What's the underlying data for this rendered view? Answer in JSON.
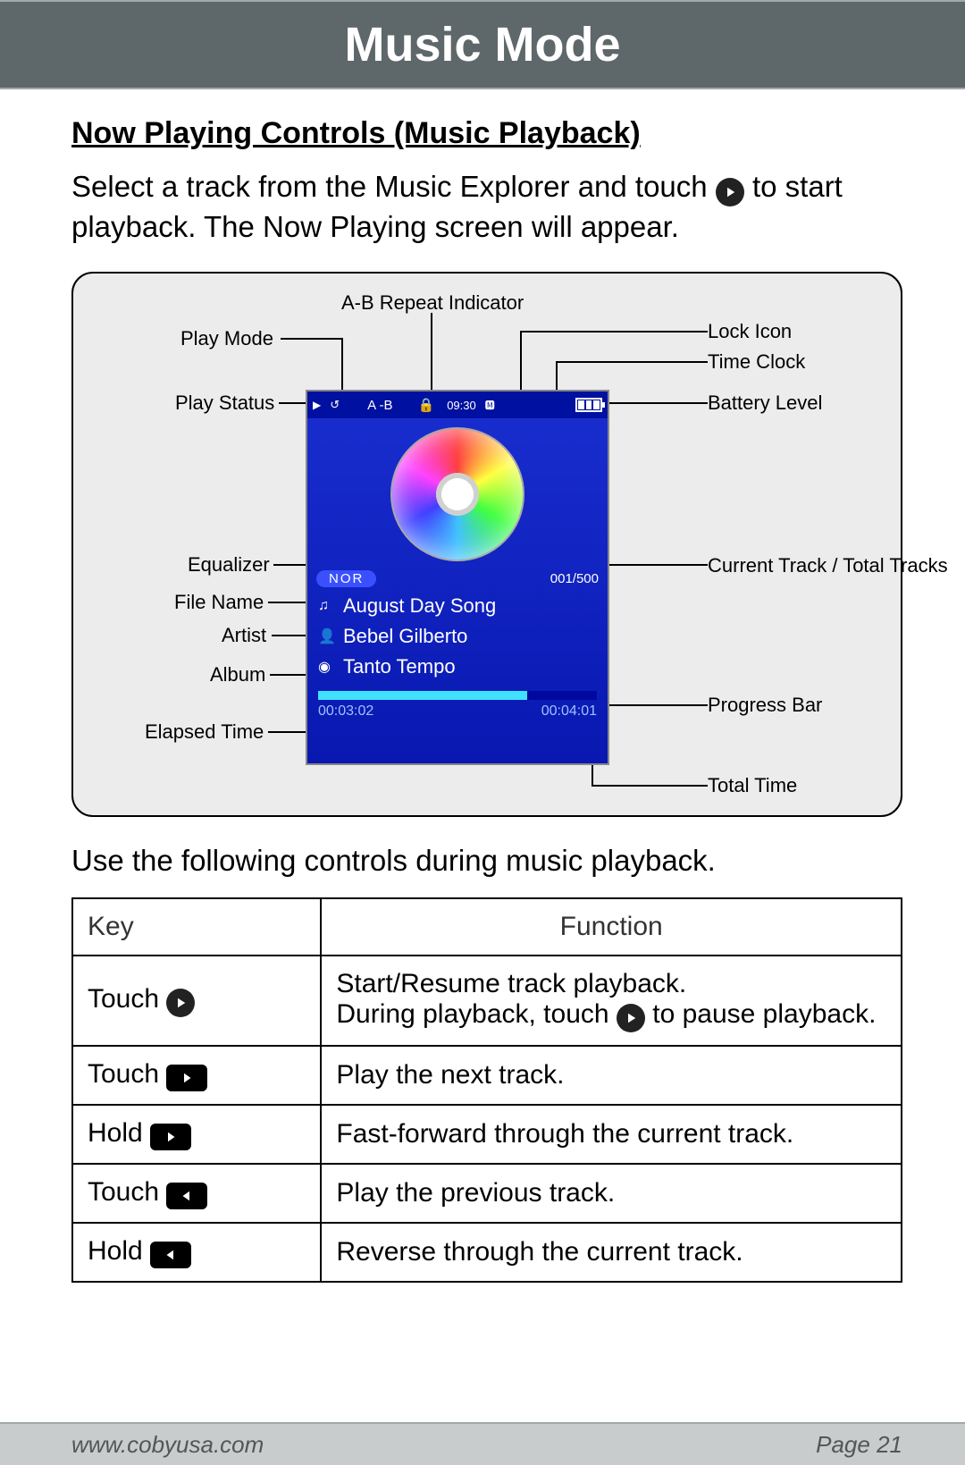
{
  "header": {
    "title": "Music Mode"
  },
  "section": {
    "title": "Now Playing Controls (Music Playback)",
    "intro_a": "Select a track from the Music Explorer and touch ",
    "intro_b": " to start playback. The Now Playing screen will appear.",
    "after": "Use the following controls during music playback."
  },
  "diagram": {
    "labels": {
      "ab_repeat": "A-B Repeat Indicator",
      "play_mode": "Play Mode",
      "play_status": "Play Status",
      "lock": "Lock Icon",
      "clock": "Time Clock",
      "battery": "Battery Level",
      "equalizer": "Equalizer",
      "file_name": "File Name",
      "artist": "Artist",
      "album": "Album",
      "elapsed": "Elapsed Time",
      "track_count": "Current Track / Total Tracks",
      "progress": "Progress Bar",
      "total_time": "Total Time"
    },
    "screen": {
      "ab": "A -B",
      "clock": "09:30",
      "eq": "NOR",
      "track_count": "001/500",
      "song": "August Day Song",
      "artist": "Bebel Gilberto",
      "album": "Tanto Tempo",
      "elapsed": "00:03:02",
      "total": "00:04:01",
      "progress_pct": 75,
      "colors": {
        "bg_top": "#1a2ed0",
        "bg_bot": "#0818b0",
        "status_bg": "#0010a0",
        "eq_pill": "#3a50ff",
        "prog_bg": "#0008a0",
        "prog_fill": "#40e0ff",
        "time_text": "#a0c0ff"
      }
    },
    "box_bg": "#ececec"
  },
  "table": {
    "headers": {
      "key": "Key",
      "func": "Function"
    },
    "rows": [
      {
        "action": "Touch",
        "icon": "play-circle",
        "func_a": "Start/Resume track playback.",
        "func_b": "During playback, touch ",
        "func_c": " to pause playback."
      },
      {
        "action": "Touch",
        "icon": "next",
        "func": "Play the next track."
      },
      {
        "action": "Hold",
        "icon": "next",
        "func": "Fast-forward through the current track."
      },
      {
        "action": "Touch",
        "icon": "prev",
        "func": "Play the previous track."
      },
      {
        "action": "Hold",
        "icon": "prev",
        "func": "Reverse through the current track."
      }
    ]
  },
  "footer": {
    "url": "www.cobyusa.com",
    "page": "Page 21"
  },
  "colors": {
    "header_bg": "#5e6769",
    "footer_bg": "#c8cccd"
  }
}
